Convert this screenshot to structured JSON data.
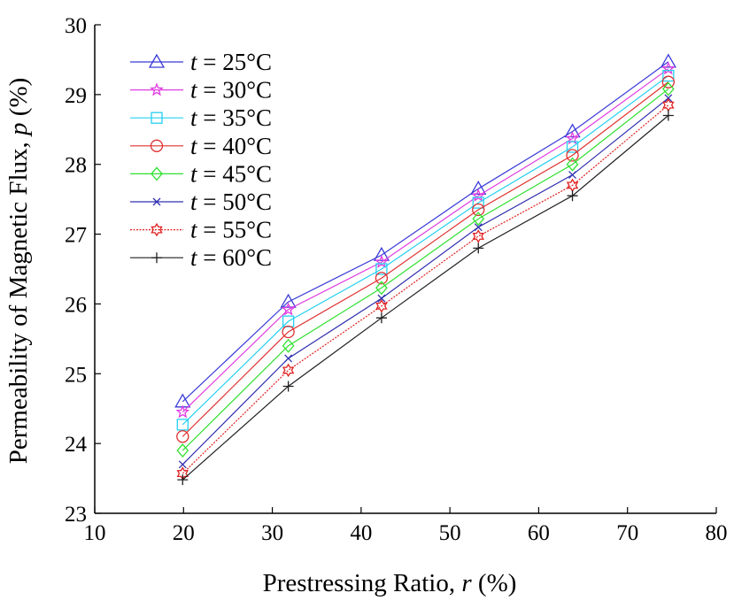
{
  "chart_data": {
    "type": "line",
    "title": "",
    "xlabel": {
      "prefix": "Prestressing Ratio, ",
      "var": "r",
      "suffix": " (%)"
    },
    "ylabel": {
      "prefix": "Permeability of Magnetic Flux, ",
      "var": "p",
      "suffix": " (%)"
    },
    "xlim": [
      10,
      80
    ],
    "ylim": [
      23,
      30
    ],
    "xticks": [
      "10",
      "20",
      "30",
      "40",
      "50",
      "60",
      "70",
      "80"
    ],
    "yticks": [
      "23",
      "24",
      "25",
      "26",
      "27",
      "28",
      "29",
      "30"
    ],
    "grid": false,
    "legend_position": "top-left",
    "x": [
      19.9,
      31.8,
      42.3,
      53.2,
      63.8,
      74.6
    ],
    "series": [
      {
        "name": "t = 25°C",
        "var": "t",
        "label": " = 25°C",
        "color": "#3a3ad8",
        "marker": "triangle",
        "values": [
          24.6,
          26.03,
          26.7,
          27.65,
          28.47,
          29.47
        ]
      },
      {
        "name": "t = 30°C",
        "var": "t",
        "label": " = 30°C",
        "color": "#e03ce0",
        "marker": "star",
        "values": [
          24.45,
          25.92,
          26.6,
          27.55,
          28.37,
          29.37
        ]
      },
      {
        "name": "t = 35°C",
        "var": "t",
        "label": " = 35°C",
        "color": "#25d0f0",
        "marker": "square",
        "values": [
          24.27,
          25.75,
          26.5,
          27.45,
          28.25,
          29.27
        ]
      },
      {
        "name": "t = 40°C",
        "var": "t",
        "label": " = 40°C",
        "color": "#e03030",
        "marker": "circle",
        "values": [
          24.1,
          25.6,
          26.37,
          27.35,
          28.13,
          29.18
        ]
      },
      {
        "name": "t = 45°C",
        "var": "t",
        "label": " = 45°C",
        "color": "#30e030",
        "marker": "diamond",
        "values": [
          23.9,
          25.4,
          26.23,
          27.22,
          28.0,
          29.08
        ]
      },
      {
        "name": "t = 50°C",
        "var": "t",
        "label": " = 50°C",
        "color": "#3030b0",
        "marker": "x",
        "values": [
          23.7,
          25.22,
          26.08,
          27.1,
          27.85,
          28.95
        ]
      },
      {
        "name": "t = 55°C",
        "var": "t",
        "label": " = 55°C",
        "color": "#e02020",
        "marker": "hexagram",
        "dash": true,
        "values": [
          23.57,
          25.05,
          25.97,
          26.97,
          27.7,
          28.85
        ]
      },
      {
        "name": "t = 60°C",
        "var": "t",
        "label": " = 60°C",
        "color": "#202020",
        "marker": "plus",
        "values": [
          23.48,
          24.82,
          25.8,
          26.8,
          27.55,
          28.7
        ]
      }
    ]
  }
}
